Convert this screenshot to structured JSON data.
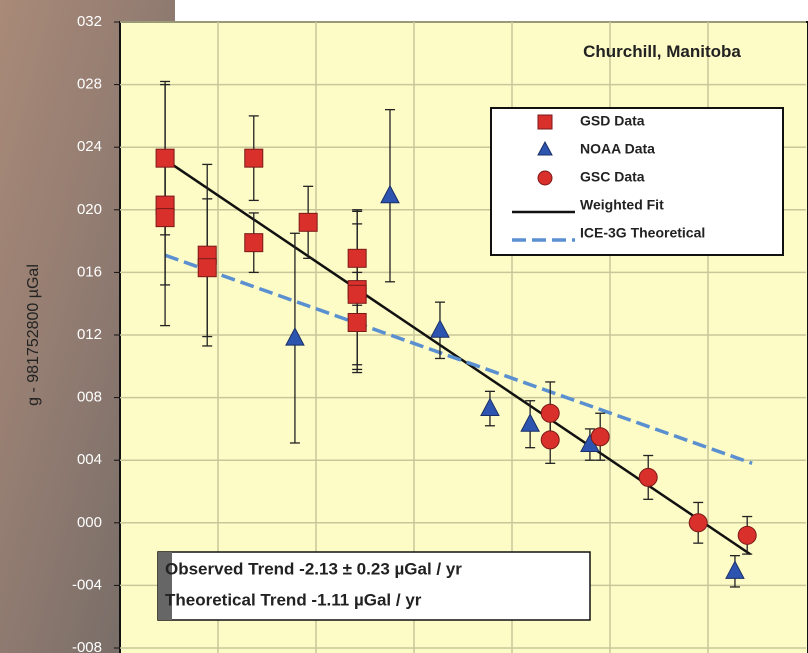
{
  "chart_data": {
    "type": "scatter",
    "title": "Churchill, Manitoba",
    "y_label": "g - 981752800 µGal",
    "xlim": [
      1966,
      1980
    ],
    "xticks": [
      1968,
      1970,
      1972,
      1974,
      1976,
      1978
    ],
    "ylim": [
      -8,
      32
    ],
    "yticks": [
      {
        "value": 32,
        "label": "032"
      },
      {
        "value": 28,
        "label": "028"
      },
      {
        "value": 24,
        "label": "024"
      },
      {
        "value": 20,
        "label": "020"
      },
      {
        "value": 16,
        "label": "016"
      },
      {
        "value": 12,
        "label": "012"
      },
      {
        "value": 8,
        "label": "008"
      },
      {
        "value": 4,
        "label": "004"
      },
      {
        "value": 0,
        "label": "000"
      },
      {
        "value": -4,
        "label": "-004"
      },
      {
        "value": -8,
        "label": "-008"
      }
    ],
    "grid": true,
    "legend": "upper right",
    "series": [
      {
        "name": "GSD Data",
        "marker": "square",
        "color": "#d9302c",
        "x": [
          1966.92,
          1966.92,
          1966.92,
          1967.78,
          1967.78,
          1968.73,
          1968.73,
          1969.84,
          1970.84,
          1970.84,
          1970.84,
          1970.84
        ],
        "values": [
          23.3,
          20.3,
          19.5,
          17.1,
          16.3,
          23.3,
          17.9,
          19.2,
          16.9,
          14.9,
          14.6,
          12.8
        ],
        "errors": [
          4.9,
          7.7,
          4.3,
          5.8,
          4.4,
          2.7,
          1.9,
          2.3,
          3.0,
          5.1,
          4.5,
          3.2
        ]
      },
      {
        "name": "NOAA Data",
        "marker": "triangle",
        "color": "#2d55b0",
        "x": [
          1969.57,
          1971.51,
          1972.53,
          1973.55,
          1974.37,
          1975.59,
          1978.55
        ],
        "values": [
          11.8,
          20.9,
          12.3,
          7.3,
          6.3,
          5.0,
          -3.1
        ],
        "errors": [
          6.7,
          5.5,
          1.8,
          1.1,
          1.5,
          1.0,
          1.0
        ]
      },
      {
        "name": "GSC Data",
        "marker": "circle",
        "color": "#d9302c",
        "x": [
          1974.78,
          1974.78,
          1975.8,
          1976.78,
          1977.8,
          1978.8
        ],
        "values": [
          7.0,
          5.3,
          5.5,
          2.9,
          0.0,
          -0.8
        ],
        "errors": [
          2.0,
          1.5,
          1.5,
          1.4,
          1.3,
          1.2
        ]
      },
      {
        "name": "Weighted Fit",
        "marker": "line",
        "color": "#111111",
        "x": [
          1966.92,
          1978.86
        ],
        "values": [
          23.2,
          -2.0
        ]
      },
      {
        "name": "ICE-3G Theoretical",
        "marker": "dashed",
        "color": "#5a8fd0",
        "x": [
          1966.92,
          1978.9
        ],
        "values": [
          17.1,
          3.8
        ]
      }
    ],
    "annotations": [
      "Observed Trend   -2.13 ± 0.23  µGal / yr",
      "Theoretical Trend -1.11 µGal / yr"
    ]
  }
}
